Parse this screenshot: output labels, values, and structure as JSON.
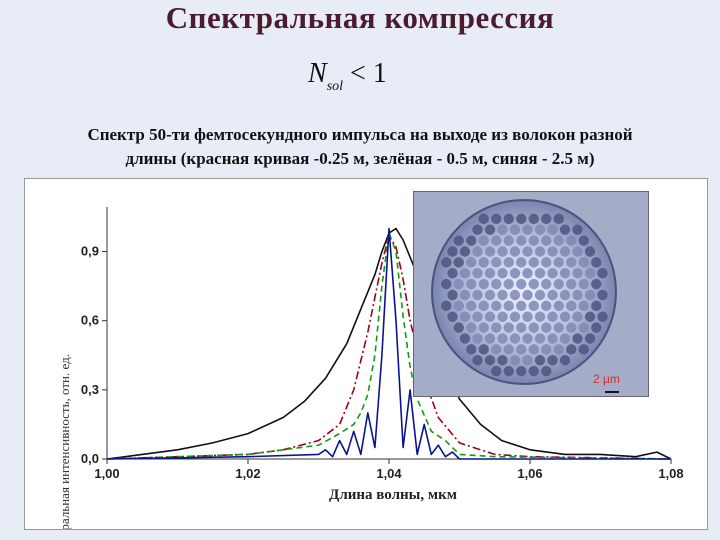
{
  "slide": {
    "title": "Спектральная компрессия",
    "formula_symbol": "N",
    "formula_subscript": "sol",
    "formula_rest": " < 1",
    "caption_line1": "Спектр 50-ти фемтосекундного импульса на выходе из волокон разной",
    "caption_line2": "длины (красная кривая -0.25 м, зелёная - 0.5 м, синяя - 2.5 м)"
  },
  "inset": {
    "scale_label": "2 µm"
  },
  "chart_data": {
    "type": "line",
    "xlabel": "Длина волны, мкм",
    "ylabel": "Спектральная интенсивность, отн. ед.",
    "xlim": [
      1.0,
      1.08
    ],
    "ylim": [
      0.0,
      1.05
    ],
    "xticks": [
      "1,00",
      "1,02",
      "1,04",
      "1,06",
      "1,08"
    ],
    "yticks": [
      "0,0",
      "0,3",
      "0,6",
      "0,9"
    ],
    "grid": false,
    "series": [
      {
        "color": "#111111",
        "dash": "solid",
        "x": [
          1.0,
          1.005,
          1.01,
          1.015,
          1.02,
          1.025,
          1.028,
          1.031,
          1.034,
          1.036,
          1.038,
          1.039,
          1.04,
          1.041,
          1.042,
          1.044,
          1.046,
          1.048,
          1.05,
          1.053,
          1.056,
          1.06,
          1.065,
          1.07,
          1.075,
          1.078,
          1.08
        ],
        "y": [
          0.0,
          0.02,
          0.04,
          0.07,
          0.11,
          0.18,
          0.25,
          0.35,
          0.5,
          0.65,
          0.8,
          0.9,
          0.98,
          1.0,
          0.95,
          0.8,
          0.6,
          0.4,
          0.26,
          0.15,
          0.08,
          0.04,
          0.02,
          0.02,
          0.01,
          0.03,
          0.0
        ]
      },
      {
        "color": "#a00018",
        "dash": "dashdot",
        "x": [
          1.0,
          1.01,
          1.02,
          1.025,
          1.03,
          1.033,
          1.035,
          1.037,
          1.039,
          1.04,
          1.041,
          1.042,
          1.043,
          1.045,
          1.047,
          1.05,
          1.055,
          1.06,
          1.08
        ],
        "y": [
          0.0,
          0.01,
          0.02,
          0.04,
          0.08,
          0.15,
          0.3,
          0.55,
          0.85,
          0.97,
          0.92,
          0.78,
          0.6,
          0.35,
          0.18,
          0.07,
          0.02,
          0.01,
          0.0
        ]
      },
      {
        "color": "#159a15",
        "dash": "dashed",
        "x": [
          1.0,
          1.02,
          1.03,
          1.033,
          1.035,
          1.036,
          1.037,
          1.038,
          1.039,
          1.04,
          1.041,
          1.042,
          1.043,
          1.044,
          1.046,
          1.048,
          1.05,
          1.055,
          1.08
        ],
        "y": [
          0.0,
          0.02,
          0.06,
          0.11,
          0.15,
          0.2,
          0.28,
          0.45,
          0.75,
          0.98,
          0.9,
          0.62,
          0.4,
          0.26,
          0.12,
          0.08,
          0.02,
          0.01,
          0.0
        ]
      },
      {
        "color": "#0a1490",
        "dash": "solid",
        "x": [
          1.0,
          1.02,
          1.03,
          1.031,
          1.032,
          1.033,
          1.034,
          1.035,
          1.036,
          1.037,
          1.038,
          1.039,
          1.04,
          1.041,
          1.042,
          1.043,
          1.044,
          1.045,
          1.046,
          1.047,
          1.048,
          1.049,
          1.05,
          1.06,
          1.08
        ],
        "y": [
          0.0,
          0.01,
          0.02,
          0.04,
          0.01,
          0.08,
          0.02,
          0.12,
          0.02,
          0.2,
          0.05,
          0.45,
          1.0,
          0.6,
          0.05,
          0.3,
          0.02,
          0.15,
          0.02,
          0.06,
          0.01,
          0.03,
          0.0,
          0.0,
          0.0
        ]
      }
    ]
  }
}
